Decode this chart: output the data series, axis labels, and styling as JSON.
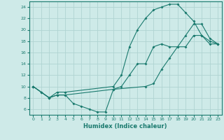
{
  "xlabel": "Humidex (Indice chaleur)",
  "background_color": "#ceeae8",
  "grid_color": "#afd4d2",
  "line_color": "#1a7a6e",
  "xlim": [
    -0.5,
    23.5
  ],
  "ylim": [
    5,
    25
  ],
  "xticks": [
    0,
    1,
    2,
    3,
    4,
    5,
    6,
    7,
    8,
    9,
    10,
    11,
    12,
    13,
    14,
    15,
    16,
    17,
    18,
    19,
    20,
    21,
    22,
    23
  ],
  "yticks": [
    6,
    8,
    10,
    12,
    14,
    16,
    18,
    20,
    22,
    24
  ],
  "line1_x": [
    0,
    1,
    2,
    3,
    4,
    5,
    6,
    7,
    8,
    9,
    10,
    14,
    15,
    16,
    17,
    18,
    19,
    20,
    21,
    22,
    23
  ],
  "line1_y": [
    10,
    9,
    8,
    8.5,
    8.5,
    7,
    6.5,
    6,
    5.5,
    5.5,
    9.5,
    10,
    10.5,
    13,
    15,
    17,
    19,
    21,
    21,
    18.5,
    17.5
  ],
  "line2_x": [
    0,
    1,
    2,
    3,
    4,
    10,
    11,
    12,
    13,
    14,
    15,
    16,
    17,
    18,
    19,
    20,
    21,
    22,
    23
  ],
  "line2_y": [
    10,
    9,
    8,
    9,
    9,
    10,
    12,
    17,
    20,
    22,
    23.5,
    24,
    24.5,
    24.5,
    23,
    21.5,
    19,
    18,
    17.5
  ],
  "line3_x": [
    0,
    2,
    3,
    4,
    10,
    11,
    12,
    13,
    14,
    15,
    16,
    17,
    18,
    19,
    20,
    21,
    22,
    23
  ],
  "line3_y": [
    10,
    8,
    8.5,
    8.5,
    9.5,
    10,
    12,
    14,
    14,
    17,
    17.5,
    17,
    17,
    17,
    19,
    19,
    17.5,
    17.5
  ]
}
